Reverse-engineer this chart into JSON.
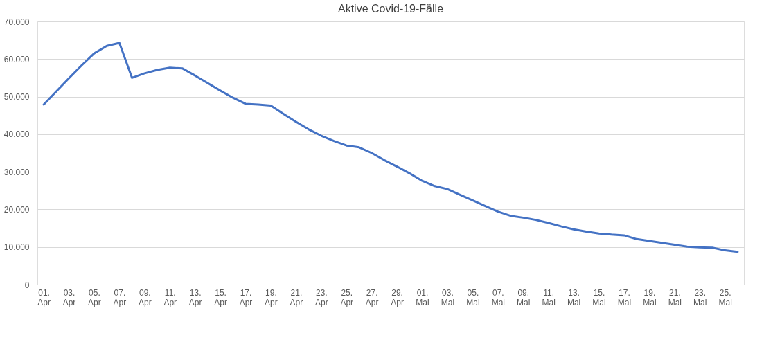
{
  "chart_data": {
    "type": "line",
    "title": "Aktive Covid-19-Fälle",
    "categories": [
      "01. Apr",
      null,
      "03. Apr",
      null,
      "05. Apr",
      null,
      "07. Apr",
      null,
      "09. Apr",
      null,
      "11. Apr",
      null,
      "13. Apr",
      null,
      "15. Apr",
      null,
      "17. Apr",
      null,
      "19. Apr",
      null,
      "21. Apr",
      null,
      "23. Apr",
      null,
      "25. Apr",
      null,
      "27. Apr",
      null,
      "29. Apr",
      null,
      "01. Mai",
      null,
      "03. Mai",
      null,
      "05. Mai",
      null,
      "07. Mai",
      null,
      "09. Mai",
      null,
      "11. Mai",
      null,
      "13. Mai",
      null,
      "15. Mai",
      null,
      "17. Mai",
      null,
      "19. Mai",
      null,
      "21. Mai",
      null,
      "23. Mai",
      null,
      "25. Mai",
      null
    ],
    "series": [
      {
        "color": "#4472c4",
        "values": [
          47900,
          51400,
          54900,
          58300,
          61500,
          63500,
          64300,
          55000,
          56200,
          57100,
          57700,
          57500,
          55600,
          53600,
          51600,
          49700,
          48100,
          47900,
          47600,
          45400,
          43300,
          41300,
          39600,
          38200,
          37000,
          36500,
          35000,
          33100,
          31400,
          29600,
          27600,
          26200,
          25400,
          23900,
          22400,
          20900,
          19400,
          18300,
          17800,
          17200,
          16400,
          15500,
          14700,
          14100,
          13600,
          13300,
          13100,
          12100,
          11600,
          11100,
          10600,
          10100,
          9900,
          9800,
          9100,
          8700
        ]
      }
    ],
    "ylim": [
      0,
      70000
    ],
    "yticks": [
      0,
      {
        "value": 10000,
        "label": "10.000"
      },
      {
        "value": 20000,
        "label": "20.000"
      },
      {
        "value": 30000,
        "label": "30.000"
      },
      {
        "value": 40000,
        "label": "40.000"
      },
      {
        "value": 50000,
        "label": "50.000"
      },
      {
        "value": 60000,
        "label": "60.000"
      },
      {
        "value": 70000,
        "label": "70.000"
      }
    ],
    "grid": "y",
    "legend": false,
    "marker": "none",
    "line_style": "solid"
  }
}
